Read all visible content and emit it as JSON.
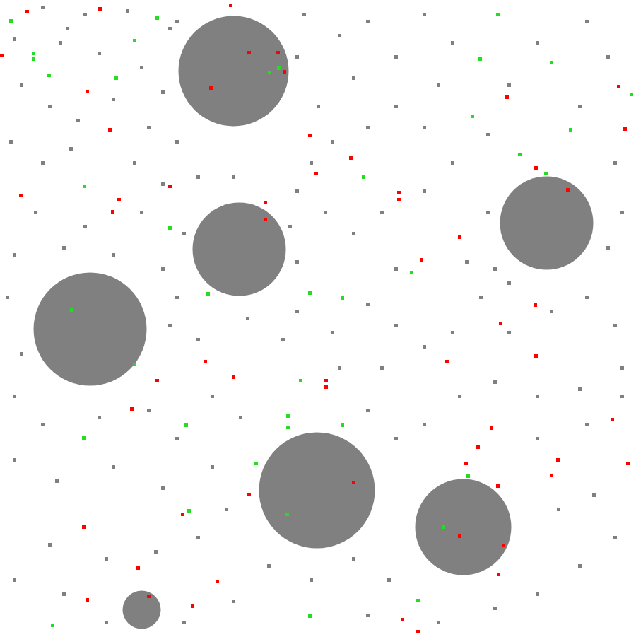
{
  "chart_data": {
    "type": "scatter",
    "tick_labels": false,
    "grid": false,
    "xlim": [
      0,
      900
    ],
    "ylim": [
      901,
      0
    ],
    "series": [
      {
        "color": "#808080",
        "marker": "circle",
        "x": [
          330,
          338,
          773,
          127,
          448,
          655,
          200
        ],
        "y": [
          100,
          352,
          315,
          465,
          693,
          745,
          862
        ],
        "size": [
          78,
          66,
          66,
          80,
          82,
          68,
          27
        ]
      },
      {
        "color": "#808080",
        "marker": "square",
        "x": [
          60,
          95,
          120,
          180,
          240,
          20,
          85,
          140,
          200,
          230,
          30,
          70,
          110,
          160,
          210,
          250,
          15,
          60,
          100,
          190,
          230,
          50,
          120,
          200,
          260,
          20,
          90,
          160,
          230,
          250,
          10,
          30,
          20,
          60,
          140,
          210,
          250,
          300,
          340,
          280,
          240,
          350,
          400,
          420,
          470,
          520,
          560,
          600,
          640,
          680,
          720,
          780,
          830,
          870,
          880,
          820,
          760,
          700,
          650,
          600,
          560,
          520,
          540,
          480,
          20,
          80,
          160,
          230,
          300,
          320,
          280,
          220,
          150,
          70,
          20,
          90,
          150,
          260,
          330,
          380,
          440,
          500,
          550,
          520,
          620,
          700,
          760,
          820,
          870,
          840,
          790,
          760,
          830,
          880,
          430,
          480,
          520,
          560,
          600,
          640,
          620,
          560,
          500,
          450,
          420,
          460,
          500,
          540,
          600,
          640,
          690,
          720,
          760,
          830,
          860,
          820,
          870,
          880,
          860,
          690,
          660,
          700,
          720,
          420,
          440,
          560,
          330,
          280,
          410,
          250,
          420,
          470,
          520,
          600
        ],
        "y": [
          10,
          40,
          20,
          15,
          40,
          55,
          60,
          75,
          95,
          130,
          120,
          150,
          170,
          140,
          180,
          200,
          200,
          230,
          210,
          230,
          260,
          300,
          320,
          300,
          330,
          360,
          350,
          360,
          380,
          420,
          420,
          500,
          560,
          600,
          590,
          580,
          620,
          560,
          590,
          480,
          460,
          450,
          480,
          440,
          470,
          430,
          460,
          490,
          470,
          420,
          470,
          440,
          420,
          460,
          520,
          550,
          560,
          540,
          560,
          600,
          620,
          580,
          520,
          520,
          650,
          680,
          660,
          690,
          660,
          720,
          760,
          780,
          790,
          770,
          820,
          840,
          880,
          880,
          850,
          800,
          820,
          790,
          820,
          870,
          880,
          860,
          840,
          800,
          760,
          700,
          720,
          620,
          600,
          560,
          20,
          50,
          30,
          80,
          20,
          60,
          120,
          150,
          110,
          150,
          80,
          300,
          330,
          300,
          270,
          230,
          190,
          120,
          60,
          30,
          80,
          150,
          230,
          300,
          350,
          300,
          370,
          380,
          400,
          370,
          230,
          380,
          250,
          250,
          320,
          30,
          270,
          200,
          180,
          180
        ]
      },
      {
        "color": "#ff0000",
        "marker": "square",
        "x": [
          38,
          141,
          326,
          2,
          123,
          155,
          352,
          393,
          402,
          298,
          717,
          875,
          884,
          438,
          496,
          447,
          564,
          564,
          240,
          29,
          168,
          159,
          375,
          375,
          650,
          596,
          758,
          803,
          757,
          708,
          758,
          632,
          290,
          330,
          461,
          461,
          222,
          186,
          866,
          695,
          676,
          659,
          789,
          780,
          888,
          500,
          352,
          258,
          704,
          712,
          650,
          705,
          118,
          195,
          307,
          123,
          210,
          272,
          569,
          591
        ],
        "y": [
          16,
          12,
          7,
          78,
          129,
          183,
          74,
          74,
          101,
          124,
          137,
          122,
          182,
          191,
          223,
          245,
          272,
          282,
          263,
          276,
          282,
          299,
          286,
          310,
          335,
          367,
          237,
          268,
          431,
          457,
          503,
          511,
          511,
          533,
          538,
          547,
          538,
          578,
          593,
          605,
          632,
          655,
          650,
          672,
          655,
          682,
          699,
          727,
          687,
          771,
          758,
          812,
          745,
          803,
          822,
          848,
          843,
          857,
          876,
          893
        ]
      },
      {
        "color": "#22dd22",
        "marker": "square",
        "x": [
          15,
          222,
          47,
          47,
          69,
          190,
          164,
          704,
          679,
          780,
          893,
          668,
          807,
          735,
          772,
          514,
          119,
          240,
          381,
          394,
          582,
          438,
          484,
          294,
          101,
          190,
          425,
          407,
          407,
          484,
          263,
          118,
          362,
          662,
          406,
          627,
          267,
          591,
          438,
          74
        ],
        "y": [
          29,
          25,
          75,
          83,
          106,
          57,
          110,
          20,
          83,
          88,
          133,
          164,
          183,
          218,
          245,
          250,
          263,
          322,
          102,
          96,
          385,
          414,
          421,
          415,
          438,
          515,
          538,
          588,
          604,
          601,
          601,
          619,
          655,
          673,
          727,
          745,
          722,
          849,
          871,
          884
        ]
      }
    ]
  }
}
